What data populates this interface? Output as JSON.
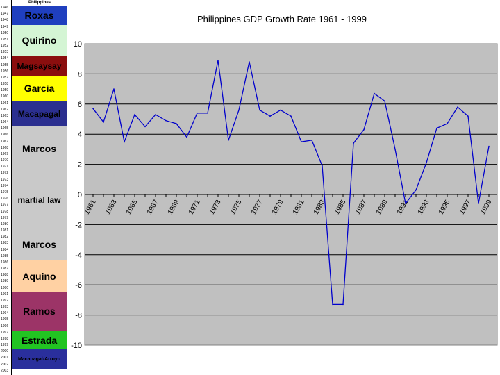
{
  "timeline": {
    "header": "Philippines",
    "years": [
      "1946",
      "1947",
      "1948",
      "1949",
      "1950",
      "1951",
      "1952",
      "1953",
      "1954",
      "1955",
      "1956",
      "1957",
      "1958",
      "1959",
      "1960",
      "1961",
      "1962",
      "1963",
      "1964",
      "1965",
      "1966",
      "1967",
      "1968",
      "1969",
      "1970",
      "1971",
      "1972",
      "1973",
      "1974",
      "1975",
      "1976",
      "1977",
      "1978",
      "1979",
      "1980",
      "1981",
      "1982",
      "1983",
      "1984",
      "1985",
      "1986",
      "1987",
      "1988",
      "1989",
      "1990",
      "1991",
      "1992",
      "1993",
      "1994",
      "1995",
      "1996",
      "1997",
      "1998",
      "1999",
      "2000",
      "2001",
      "2002",
      "2003"
    ],
    "presidents": [
      {
        "label": "Roxas",
        "from": 1946,
        "to": 1949,
        "color": "#1f3fbf",
        "text_color": "#000000"
      },
      {
        "label": "Quirino",
        "from": 1949,
        "to": 1954,
        "color": "#d4f5d4",
        "text_color": "#000000"
      },
      {
        "label": "Magsaysay",
        "from": 1954,
        "to": 1957,
        "color": "#8b0e0e",
        "text_color": "#000000"
      },
      {
        "label": "Garcia",
        "from": 1957,
        "to": 1961,
        "color": "#ffff00",
        "text_color": "#000000"
      },
      {
        "label": "Macapagal",
        "from": 1961,
        "to": 1965,
        "color": "#2b2f8f",
        "text_color": "#000000"
      },
      {
        "label": "Marcos",
        "from": 1965,
        "to": 1972,
        "color": "#c9c9c9",
        "text_color": "#000000"
      },
      {
        "label": "martial law",
        "from": 1972,
        "to": 1981,
        "color": "#c9c9c9",
        "text_color": "#000000"
      },
      {
        "label": "Marcos",
        "from": 1981,
        "to": 1986,
        "color": "#c9c9c9",
        "text_color": "#000000"
      },
      {
        "label": "Aquino",
        "from": 1986,
        "to": 1991,
        "color": "#ffd1a3",
        "text_color": "#000000"
      },
      {
        "label": "Ramos",
        "from": 1991,
        "to": 1997,
        "color": "#9c3467",
        "text_color": "#000000"
      },
      {
        "label": "Estrada",
        "from": 1997,
        "to": 2000,
        "color": "#22c422",
        "text_color": "#000000"
      },
      {
        "label": "Macapagal-Arroyo",
        "from": 2000,
        "to": 2003,
        "color": "#2a2f9c",
        "text_color": "#000000"
      }
    ]
  },
  "chart_data": {
    "type": "line",
    "title": "Philippines GDP Growth Rate 1961 - 1999",
    "xlabel": "",
    "ylabel": "",
    "x": [
      1961,
      1962,
      1963,
      1964,
      1965,
      1966,
      1967,
      1968,
      1969,
      1970,
      1971,
      1972,
      1973,
      1974,
      1975,
      1976,
      1977,
      1978,
      1979,
      1980,
      1981,
      1982,
      1983,
      1984,
      1985,
      1986,
      1987,
      1988,
      1989,
      1990,
      1991,
      1992,
      1993,
      1994,
      1995,
      1996,
      1997,
      1998,
      1999
    ],
    "x_tick_labels": [
      "1961",
      "1963",
      "1965",
      "1967",
      "1969",
      "1971",
      "1973",
      "1975",
      "1977",
      "1979",
      "1981",
      "1983",
      "1985",
      "1987",
      "1989",
      "1991",
      "1993",
      "1995",
      "1997",
      "1999"
    ],
    "series": [
      {
        "values": [
          5.7,
          4.8,
          7.0,
          3.5,
          5.3,
          4.5,
          5.3,
          4.9,
          4.7,
          3.8,
          5.4,
          5.4,
          8.9,
          3.6,
          5.6,
          8.8,
          5.6,
          5.2,
          5.6,
          5.2,
          3.5,
          3.6,
          1.9,
          -7.3,
          -7.3,
          3.4,
          4.3,
          6.7,
          6.2,
          3.0,
          -0.6,
          0.3,
          2.1,
          4.4,
          4.7,
          5.8,
          5.2,
          -0.6,
          3.2
        ],
        "color": "#0000cc"
      }
    ],
    "ylim": [
      -10,
      10
    ],
    "y_ticks": [
      -10,
      -8,
      -6,
      -4,
      -2,
      0,
      2,
      4,
      6,
      8,
      10
    ],
    "plot_background": "#c0c0c0",
    "grid": true,
    "legend": "none"
  }
}
